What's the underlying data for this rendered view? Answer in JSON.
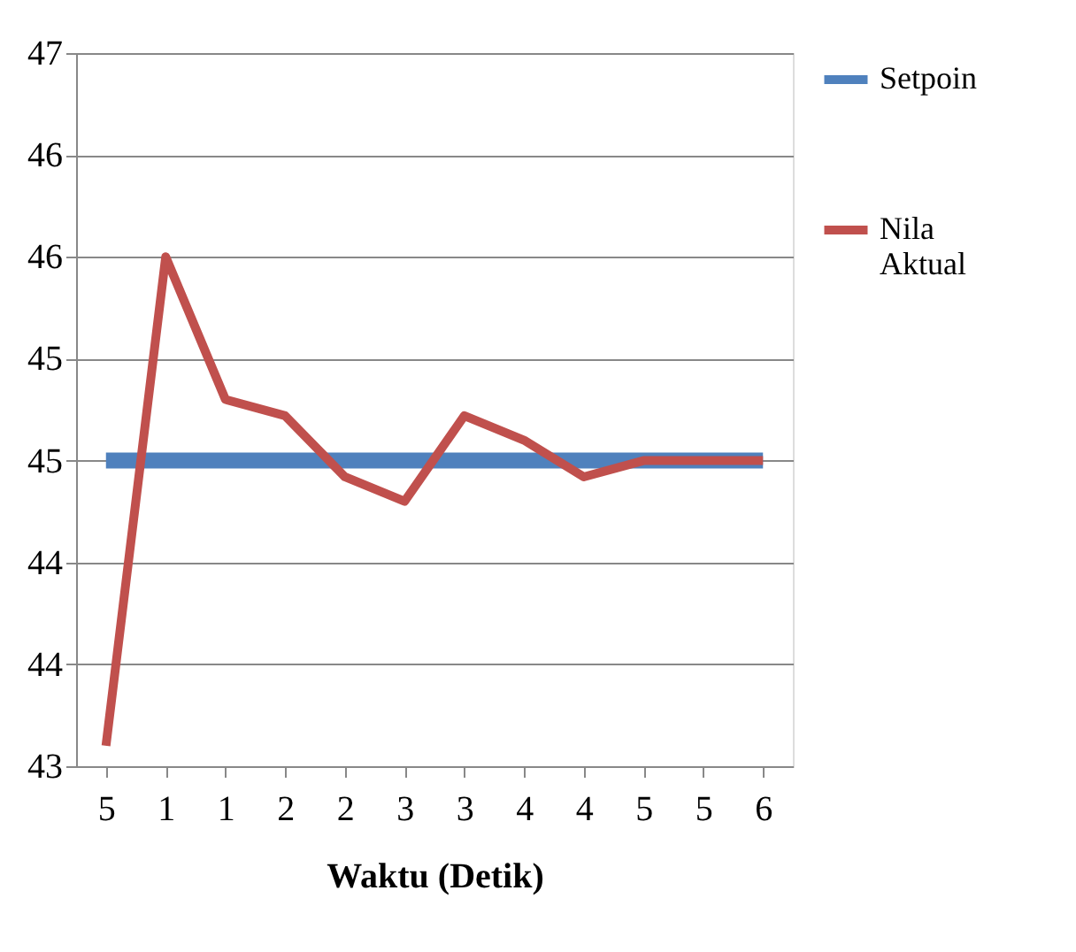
{
  "chart_data": {
    "type": "line",
    "xlabel": "Waktu (Detik)",
    "categories": [
      "5",
      "1",
      "1",
      "2",
      "2",
      "3",
      "3",
      "4",
      "4",
      "5",
      "5",
      "6"
    ],
    "series": [
      {
        "name": "Setpoin",
        "color": "#4f81bd",
        "values": [
          44.5,
          44.5,
          44.5,
          44.5,
          44.5,
          44.5,
          44.5,
          44.5,
          44.5,
          44.5,
          44.5,
          44.5
        ]
      },
      {
        "name": "Nila Aktual",
        "color": "#c0504d",
        "values": [
          43.1,
          45.5,
          44.8,
          44.72,
          44.42,
          44.3,
          44.72,
          44.6,
          44.42,
          44.5,
          44.5,
          44.5
        ]
      }
    ],
    "ylim": [
      43,
      46.5
    ],
    "yticks": [
      {
        "value": 43,
        "label": "43"
      },
      {
        "value": 43.5,
        "label": "44"
      },
      {
        "value": 44,
        "label": "44"
      },
      {
        "value": 44.5,
        "label": "45"
      },
      {
        "value": 45,
        "label": "45"
      },
      {
        "value": 45.5,
        "label": "46"
      },
      {
        "value": 46,
        "label": "46"
      },
      {
        "value": 46.5,
        "label": "47"
      }
    ],
    "grid": "y",
    "legend": "right",
    "marker": "none",
    "line_style": "solid"
  }
}
